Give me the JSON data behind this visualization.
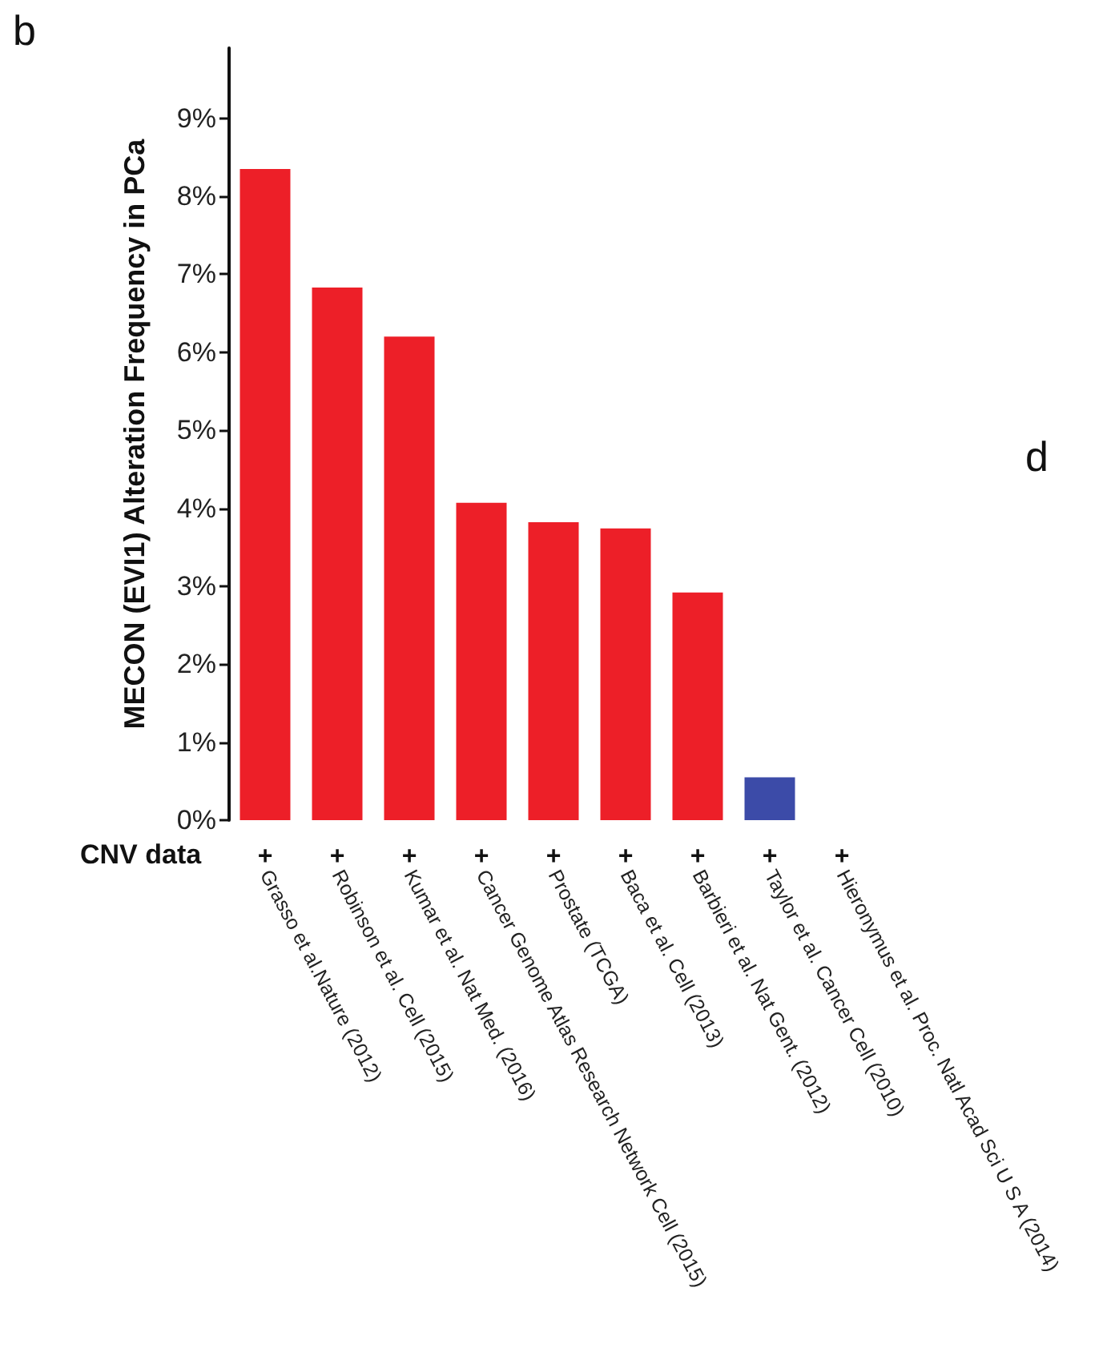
{
  "chart_data": {
    "type": "bar",
    "ylabel": "MECON (EVI1) Alteration Frequency in PCa",
    "categories": [
      "Grasso et al.Nature (2012)",
      "Robinson et al. Cell (2015)",
      "Kumar et al. Nat Med. (2016)",
      "Cancer Genome Atlas Research Network Cell (2015)",
      "Prostate (TCGA)",
      "Baca et al. Cell (2013)",
      "Barbieri et al. Nat Gent. (2012)",
      "Taylor et al. Cancer Cell (2010)",
      "Hieronymus et al. Proc. Natl Acad Sci U S A (2014)"
    ],
    "values": [
      8.35,
      6.83,
      6.2,
      4.07,
      3.82,
      3.74,
      2.92,
      0.55,
      0
    ],
    "colors": [
      "#ed1f28",
      "#ed1f28",
      "#ed1f28",
      "#ed1f28",
      "#ed1f28",
      "#ed1f28",
      "#ed1f28",
      "#3c4ba8",
      "#3c4ba8"
    ],
    "ylim": [
      0,
      9.9
    ],
    "yticks": [
      {
        "value": 0,
        "label": "0%"
      },
      {
        "value": 1,
        "label": "1%"
      },
      {
        "value": 2,
        "label": "2%"
      },
      {
        "value": 3,
        "label": "3%"
      },
      {
        "value": 4,
        "label": "4%"
      },
      {
        "value": 5,
        "label": "5%"
      },
      {
        "value": 6,
        "label": "6%"
      },
      {
        "value": 7,
        "label": "7%"
      },
      {
        "value": 8,
        "label": "8%"
      },
      {
        "value": 9,
        "label": "9%"
      }
    ],
    "grid": false,
    "annotations": [
      "b",
      "d",
      "CNV data",
      "+",
      "+",
      "+",
      "+",
      "+",
      "+",
      "+",
      "+",
      "+"
    ]
  }
}
